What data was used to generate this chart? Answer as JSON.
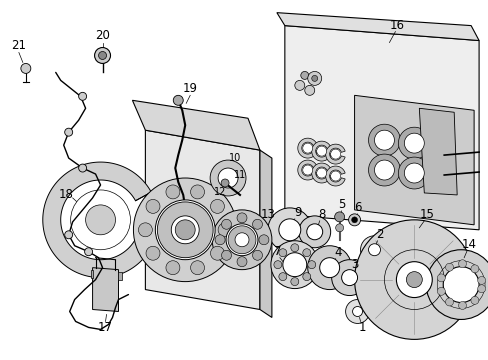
{
  "bg_color": "#ffffff",
  "line_color": "#000000",
  "text_color": "#000000",
  "fig_width": 4.89,
  "fig_height": 3.6,
  "dpi": 100,
  "font_size_label": 8.5,
  "font_size_small": 7.0,
  "lw_main": 0.7,
  "lw_thin": 0.4,
  "gray_light": "#d8d8d8",
  "gray_mid": "#b0b0b0",
  "gray_dark": "#888888"
}
